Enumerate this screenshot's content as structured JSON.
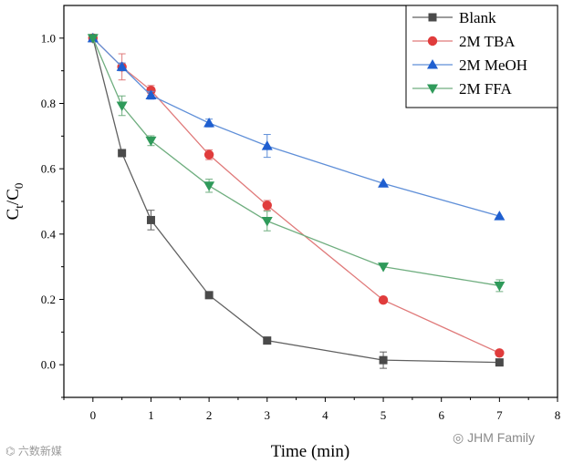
{
  "chart_data": {
    "type": "line",
    "title": "",
    "xlabel": "Time (min)",
    "ylabel_main": "C",
    "ylabel_sub1": "t",
    "ylabel_mid": "/C",
    "ylabel_sub2": "0",
    "xlim": [
      -0.5,
      8
    ],
    "ylim": [
      -0.1,
      1.1
    ],
    "xticks": [
      0,
      1,
      2,
      3,
      4,
      5,
      6,
      7,
      8
    ],
    "yticks": [
      0.0,
      0.2,
      0.4,
      0.6,
      0.8,
      1.0
    ],
    "ytick_labels": [
      "0.0",
      "0.2",
      "0.4",
      "0.6",
      "0.8",
      "1.0"
    ],
    "grid": false,
    "legend_position": "top-right",
    "series": [
      {
        "name": "Blank",
        "marker": "square",
        "line_color": "#606060",
        "marker_color": "#4a4a4a",
        "x": [
          0,
          0.5,
          1,
          2,
          3,
          5,
          7
        ],
        "y": [
          1.0,
          0.648,
          0.443,
          0.213,
          0.074,
          0.014,
          0.007
        ],
        "err": [
          0.0,
          0.01,
          0.03,
          0.01,
          0.0,
          0.025,
          0.0
        ]
      },
      {
        "name": "2M TBA",
        "marker": "circle",
        "line_color": "#e07a7a",
        "marker_color": "#e03c3c",
        "x": [
          0,
          0.5,
          1,
          2,
          3,
          5,
          7
        ],
        "y": [
          1.0,
          0.912,
          0.84,
          0.643,
          0.488,
          0.198,
          0.036
        ],
        "err": [
          0.0,
          0.04,
          0.015,
          0.015,
          0.015,
          0.0,
          0.0
        ]
      },
      {
        "name": "2M MeOH",
        "marker": "triangle-up",
        "line_color": "#5f8fd8",
        "marker_color": "#1f5fd0",
        "x": [
          0,
          0.5,
          1,
          2,
          3,
          5,
          7
        ],
        "y": [
          1.0,
          0.912,
          0.825,
          0.74,
          0.67,
          0.555,
          0.455
        ],
        "err": [
          0.0,
          0.012,
          0.012,
          0.012,
          0.035,
          0.0,
          0.0
        ]
      },
      {
        "name": "2M FFA",
        "marker": "triangle-down",
        "line_color": "#6fae7f",
        "marker_color": "#2f9a5a",
        "x": [
          0,
          0.5,
          1,
          2,
          3,
          5,
          7
        ],
        "y": [
          1.0,
          0.793,
          0.686,
          0.548,
          0.44,
          0.3,
          0.242
        ],
        "err": [
          0.0,
          0.03,
          0.015,
          0.02,
          0.03,
          0.0,
          0.018
        ]
      }
    ]
  },
  "watermarks": {
    "left": "六数新媒",
    "right": "JHM Family"
  }
}
